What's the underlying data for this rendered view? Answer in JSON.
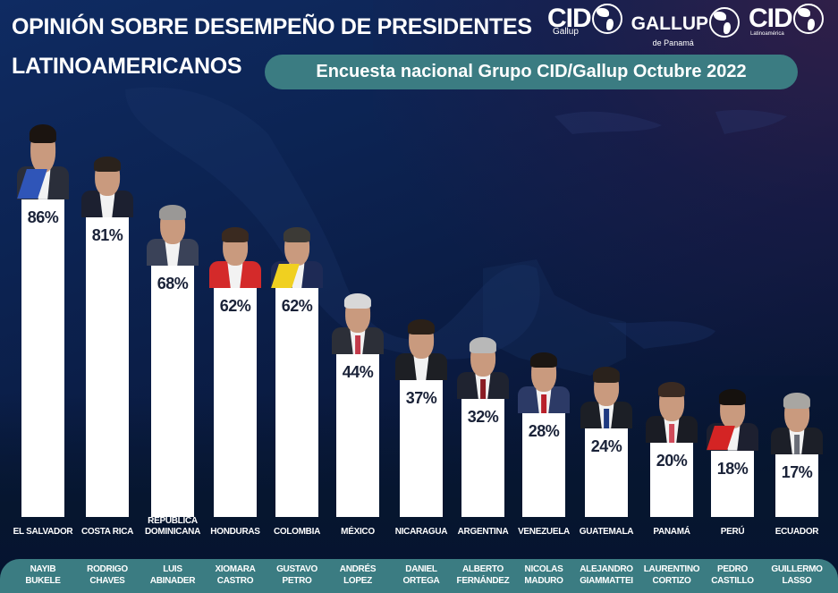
{
  "header": {
    "title_line1": "OPINIÓN SOBRE DESEMPEÑO DE PRESIDENTES",
    "title_line2": "LATINOAMERICANOS",
    "subtitle": "Encuesta nacional Grupo CID/Gallup Octubre 2022",
    "logos": [
      {
        "main": "CID",
        "sub": "Gallup"
      },
      {
        "main": "GALLUP",
        "sub": "de Panamá"
      },
      {
        "main": "CID",
        "sub": "Latinoamérica"
      }
    ]
  },
  "colors": {
    "accent_teal": "#3b7c82",
    "bar": "#ffffff",
    "value_text": "#1a2238",
    "background": "#0c2352"
  },
  "chart_data": {
    "type": "bar",
    "title": "OPINIÓN SOBRE DESEMPEÑO DE PRESIDENTES LATINOAMERICANOS",
    "subtitle": "Encuesta nacional Grupo CID/Gallup Octubre 2022",
    "xlabel": "",
    "ylabel": "",
    "ylim": [
      0,
      100
    ],
    "grid": false,
    "legend": "none",
    "categories": [
      "EL SALVADOR",
      "COSTA RICA",
      "REPÚBLICA DOMINICANA",
      "HONDURAS",
      "COLOMBIA",
      "MÉXICO",
      "NICARAGUA",
      "ARGENTINA",
      "VENEZUELA",
      "GUATEMALA",
      "PANAMÁ",
      "PERÚ",
      "ECUADOR"
    ],
    "presidents": [
      "NAYIB BUKELE",
      "RODRIGO CHAVES",
      "LUIS ABINADER",
      "XIOMARA CASTRO",
      "GUSTAVO PETRO",
      "ANDRÉS LOPEZ",
      "DANIEL ORTEGA",
      "ALBERTO FERNÁNDEZ",
      "NICOLAS MADURO",
      "ALEJANDRO GIAMMATTEI",
      "LAURENTINO CORTIZO",
      "PEDRO CASTILLO",
      "GUILLERMO LASSO"
    ],
    "values": [
      86,
      81,
      68,
      62,
      62,
      44,
      37,
      32,
      28,
      24,
      20,
      18,
      17
    ],
    "value_labels": [
      "86%",
      "81%",
      "68%",
      "62%",
      "62%",
      "44%",
      "37%",
      "32%",
      "28%",
      "24%",
      "20%",
      "18%",
      "17%"
    ]
  },
  "entries": [
    {
      "country_lines": [
        "EL SALVADOR"
      ],
      "name_lines": [
        "NAYIB",
        "BUKELE"
      ],
      "label": "86%",
      "portrait": {
        "suit": "#2a2e3a",
        "hair": "#1b1410",
        "accent": "#2f55b8",
        "accent_type": "sash"
      }
    },
    {
      "country_lines": [
        "COSTA RICA"
      ],
      "name_lines": [
        "RODRIGO",
        "CHAVES"
      ],
      "label": "81%",
      "portrait": {
        "suit": "#1c2030",
        "hair": "#2a221c",
        "accent": "",
        "accent_type": "none"
      }
    },
    {
      "country_lines": [
        "REPÚBLICA",
        "DOMINICANA"
      ],
      "name_lines": [
        "LUIS",
        "ABINADER"
      ],
      "label": "68%",
      "portrait": {
        "suit": "#3a4258",
        "hair": "#9a9896",
        "accent": "",
        "accent_type": "none"
      }
    },
    {
      "country_lines": [
        "HONDURAS"
      ],
      "name_lines": [
        "XIOMARA",
        "CASTRO"
      ],
      "label": "62%",
      "portrait": {
        "suit": "#d42a2a",
        "hair": "#3a2a20",
        "accent": "",
        "accent_type": "none"
      }
    },
    {
      "country_lines": [
        "COLOMBIA"
      ],
      "name_lines": [
        "GUSTAVO",
        "PETRO"
      ],
      "label": "62%",
      "portrait": {
        "suit": "#1e2a55",
        "hair": "#3c3a36",
        "accent": "#f0d020",
        "accent_type": "sash"
      }
    },
    {
      "country_lines": [
        "MÉXICO"
      ],
      "name_lines": [
        "ANDRÉS",
        "LOPEZ"
      ],
      "label": "44%",
      "portrait": {
        "suit": "#2c2f38",
        "hair": "#d8d8d8",
        "accent": "#c23a4a",
        "accent_type": "tie"
      }
    },
    {
      "country_lines": [
        "NICARAGUA"
      ],
      "name_lines": [
        "DANIEL",
        "ORTEGA"
      ],
      "label": "37%",
      "portrait": {
        "suit": "#1d1f24",
        "hair": "#2a2018",
        "accent": "",
        "accent_type": "none"
      }
    },
    {
      "country_lines": [
        "ARGENTINA"
      ],
      "name_lines": [
        "ALBERTO",
        "FERNÁNDEZ"
      ],
      "label": "32%",
      "portrait": {
        "suit": "#1f2330",
        "hair": "#b8b8b8",
        "accent": "#8a1c24",
        "accent_type": "tie"
      }
    },
    {
      "country_lines": [
        "VENEZUELA"
      ],
      "name_lines": [
        "NICOLAS",
        "MADURO"
      ],
      "label": "28%",
      "portrait": {
        "suit": "#2c3a66",
        "hair": "#1b1612",
        "accent": "#b8202a",
        "accent_type": "tie"
      }
    },
    {
      "country_lines": [
        "GUATEMALA"
      ],
      "name_lines": [
        "ALEJANDRO",
        "GIAMMATTEI"
      ],
      "label": "24%",
      "portrait": {
        "suit": "#1c1f26",
        "hair": "#2a221c",
        "accent": "#1f3a80",
        "accent_type": "tie"
      }
    },
    {
      "country_lines": [
        "PANAMÁ"
      ],
      "name_lines": [
        "LAURENTINO",
        "CORTIZO"
      ],
      "label": "20%",
      "portrait": {
        "suit": "#1a1c24",
        "hair": "#3a2a22",
        "accent": "#d04a5a",
        "accent_type": "tie"
      }
    },
    {
      "country_lines": [
        "PERÚ"
      ],
      "name_lines": [
        "PEDRO",
        "CASTILLO"
      ],
      "label": "18%",
      "portrait": {
        "suit": "#1d2030",
        "hair": "#15110e",
        "accent": "#d42424",
        "accent_type": "sash"
      }
    },
    {
      "country_lines": [
        "ECUADOR"
      ],
      "name_lines": [
        "GUILLERMO",
        "LASSO"
      ],
      "label": "17%",
      "portrait": {
        "suit": "#1c1f28",
        "hair": "#a8a6a2",
        "accent": "#6a6e78",
        "accent_type": "tie"
      }
    }
  ]
}
